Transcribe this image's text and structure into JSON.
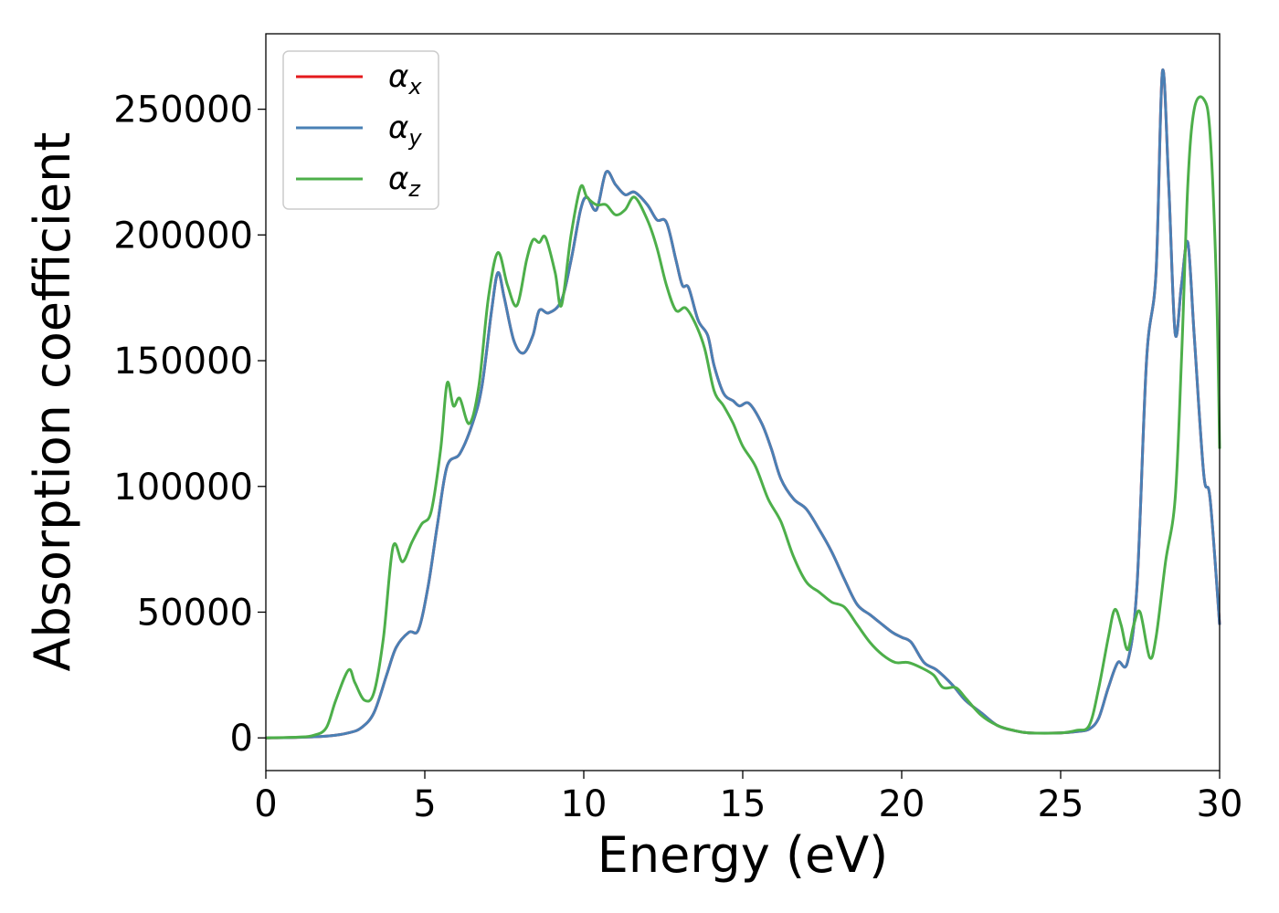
{
  "chart_data": {
    "type": "line",
    "title": "",
    "xlabel": "Energy (eV)",
    "ylabel": "Absorption coefficient",
    "xlim": [
      0,
      30
    ],
    "ylim": [
      -13000,
      280000
    ],
    "xticks": [
      0,
      5,
      10,
      15,
      20,
      25,
      30
    ],
    "yticks": [
      0,
      50000,
      100000,
      150000,
      200000,
      250000
    ],
    "xtick_labels": [
      "0",
      "5",
      "10",
      "15",
      "20",
      "25",
      "30"
    ],
    "ytick_labels": [
      "0",
      "50000",
      "100000",
      "150000",
      "200000",
      "250000"
    ],
    "grid": false,
    "legend_position": "top-left",
    "series": [
      {
        "name": "αx",
        "base": "α",
        "sub": "x",
        "color": "#e41a1c",
        "points": [
          [
            0,
            0
          ],
          [
            1,
            200
          ],
          [
            2,
            800
          ],
          [
            2.6,
            2000
          ],
          [
            3,
            4000
          ],
          [
            3.4,
            10000
          ],
          [
            3.8,
            25000
          ],
          [
            4.1,
            36000
          ],
          [
            4.5,
            42000
          ],
          [
            4.8,
            43000
          ],
          [
            5.1,
            60000
          ],
          [
            5.4,
            85000
          ],
          [
            5.7,
            108000
          ],
          [
            6.1,
            113000
          ],
          [
            6.5,
            125000
          ],
          [
            6.8,
            140000
          ],
          [
            7.1,
            170000
          ],
          [
            7.3,
            185000
          ],
          [
            7.5,
            175000
          ],
          [
            7.8,
            158000
          ],
          [
            8.1,
            153000
          ],
          [
            8.4,
            160000
          ],
          [
            8.6,
            170000
          ],
          [
            8.9,
            169000
          ],
          [
            9.3,
            174000
          ],
          [
            9.6,
            190000
          ],
          [
            9.9,
            210000
          ],
          [
            10.1,
            215000
          ],
          [
            10.4,
            210000
          ],
          [
            10.7,
            225000
          ],
          [
            11,
            220000
          ],
          [
            11.3,
            216000
          ],
          [
            11.6,
            217000
          ],
          [
            12,
            212000
          ],
          [
            12.3,
            206000
          ],
          [
            12.6,
            205000
          ],
          [
            12.9,
            190000
          ],
          [
            13.1,
            180000
          ],
          [
            13.3,
            179000
          ],
          [
            13.6,
            166000
          ],
          [
            13.9,
            160000
          ],
          [
            14.1,
            148000
          ],
          [
            14.4,
            137000
          ],
          [
            14.7,
            134000
          ],
          [
            14.9,
            132000
          ],
          [
            15.2,
            133000
          ],
          [
            15.6,
            125000
          ],
          [
            15.9,
            115000
          ],
          [
            16.2,
            103000
          ],
          [
            16.6,
            95000
          ],
          [
            17,
            91000
          ],
          [
            17.4,
            83000
          ],
          [
            17.8,
            74000
          ],
          [
            18.2,
            63000
          ],
          [
            18.6,
            53000
          ],
          [
            19,
            49000
          ],
          [
            19.3,
            46000
          ],
          [
            19.7,
            42000
          ],
          [
            20,
            40000
          ],
          [
            20.3,
            38000
          ],
          [
            20.7,
            30000
          ],
          [
            21.1,
            27000
          ],
          [
            21.6,
            21000
          ],
          [
            22,
            15000
          ],
          [
            22.5,
            10000
          ],
          [
            23,
            5000
          ],
          [
            23.5,
            3000
          ],
          [
            24,
            2000
          ],
          [
            25,
            2000
          ],
          [
            25.5,
            2500
          ],
          [
            25.9,
            3500
          ],
          [
            26.2,
            8000
          ],
          [
            26.5,
            20000
          ],
          [
            26.8,
            30000
          ],
          [
            27.1,
            30000
          ],
          [
            27.4,
            60000
          ],
          [
            27.7,
            150000
          ],
          [
            28,
            185000
          ],
          [
            28.2,
            265000
          ],
          [
            28.4,
            220000
          ],
          [
            28.6,
            161000
          ],
          [
            28.8,
            180000
          ],
          [
            29,
            197000
          ],
          [
            29.2,
            160000
          ],
          [
            29.5,
            105000
          ],
          [
            29.7,
            95000
          ],
          [
            30,
            45000
          ]
        ]
      },
      {
        "name": "αy",
        "base": "α",
        "sub": "y",
        "color": "#4a80b5",
        "points": [
          [
            0,
            0
          ],
          [
            1,
            200
          ],
          [
            2,
            800
          ],
          [
            2.6,
            2000
          ],
          [
            3,
            4000
          ],
          [
            3.4,
            10000
          ],
          [
            3.8,
            25000
          ],
          [
            4.1,
            36000
          ],
          [
            4.5,
            42000
          ],
          [
            4.8,
            43000
          ],
          [
            5.1,
            60000
          ],
          [
            5.4,
            85000
          ],
          [
            5.7,
            108000
          ],
          [
            6.1,
            113000
          ],
          [
            6.5,
            125000
          ],
          [
            6.8,
            140000
          ],
          [
            7.1,
            170000
          ],
          [
            7.3,
            185000
          ],
          [
            7.5,
            175000
          ],
          [
            7.8,
            158000
          ],
          [
            8.1,
            153000
          ],
          [
            8.4,
            160000
          ],
          [
            8.6,
            170000
          ],
          [
            8.9,
            169000
          ],
          [
            9.3,
            174000
          ],
          [
            9.6,
            190000
          ],
          [
            9.9,
            210000
          ],
          [
            10.1,
            215000
          ],
          [
            10.4,
            210000
          ],
          [
            10.7,
            225000
          ],
          [
            11,
            220000
          ],
          [
            11.3,
            216000
          ],
          [
            11.6,
            217000
          ],
          [
            12,
            212000
          ],
          [
            12.3,
            206000
          ],
          [
            12.6,
            205000
          ],
          [
            12.9,
            190000
          ],
          [
            13.1,
            180000
          ],
          [
            13.3,
            179000
          ],
          [
            13.6,
            166000
          ],
          [
            13.9,
            160000
          ],
          [
            14.1,
            148000
          ],
          [
            14.4,
            137000
          ],
          [
            14.7,
            134000
          ],
          [
            14.9,
            132000
          ],
          [
            15.2,
            133000
          ],
          [
            15.6,
            125000
          ],
          [
            15.9,
            115000
          ],
          [
            16.2,
            103000
          ],
          [
            16.6,
            95000
          ],
          [
            17,
            91000
          ],
          [
            17.4,
            83000
          ],
          [
            17.8,
            74000
          ],
          [
            18.2,
            63000
          ],
          [
            18.6,
            53000
          ],
          [
            19,
            49000
          ],
          [
            19.3,
            46000
          ],
          [
            19.7,
            42000
          ],
          [
            20,
            40000
          ],
          [
            20.3,
            38000
          ],
          [
            20.7,
            30000
          ],
          [
            21.1,
            27000
          ],
          [
            21.6,
            21000
          ],
          [
            22,
            15000
          ],
          [
            22.5,
            10000
          ],
          [
            23,
            5000
          ],
          [
            23.5,
            3000
          ],
          [
            24,
            2000
          ],
          [
            25,
            2000
          ],
          [
            25.5,
            2500
          ],
          [
            25.9,
            3500
          ],
          [
            26.2,
            8000
          ],
          [
            26.5,
            20000
          ],
          [
            26.8,
            30000
          ],
          [
            27.1,
            30000
          ],
          [
            27.4,
            60000
          ],
          [
            27.7,
            150000
          ],
          [
            28,
            185000
          ],
          [
            28.2,
            265000
          ],
          [
            28.4,
            220000
          ],
          [
            28.6,
            161000
          ],
          [
            28.8,
            180000
          ],
          [
            29,
            197000
          ],
          [
            29.2,
            160000
          ],
          [
            29.5,
            105000
          ],
          [
            29.7,
            95000
          ],
          [
            30,
            45000
          ]
        ]
      },
      {
        "name": "αz",
        "base": "α",
        "sub": "z",
        "color": "#4daf4a",
        "points": [
          [
            0,
            0
          ],
          [
            1,
            300
          ],
          [
            1.5,
            1000
          ],
          [
            1.9,
            4000
          ],
          [
            2.2,
            15000
          ],
          [
            2.6,
            27000
          ],
          [
            2.8,
            22000
          ],
          [
            3.1,
            15000
          ],
          [
            3.4,
            18000
          ],
          [
            3.7,
            40000
          ],
          [
            4,
            76000
          ],
          [
            4.3,
            70000
          ],
          [
            4.6,
            78000
          ],
          [
            4.9,
            85000
          ],
          [
            5.2,
            90000
          ],
          [
            5.5,
            115000
          ],
          [
            5.7,
            141000
          ],
          [
            5.9,
            132000
          ],
          [
            6.1,
            135000
          ],
          [
            6.4,
            125000
          ],
          [
            6.7,
            140000
          ],
          [
            7,
            175000
          ],
          [
            7.3,
            193000
          ],
          [
            7.6,
            180000
          ],
          [
            7.9,
            172000
          ],
          [
            8.2,
            190000
          ],
          [
            8.4,
            198000
          ],
          [
            8.6,
            197000
          ],
          [
            8.8,
            199000
          ],
          [
            9.1,
            185000
          ],
          [
            9.3,
            172000
          ],
          [
            9.6,
            200000
          ],
          [
            9.9,
            219000
          ],
          [
            10.1,
            215000
          ],
          [
            10.4,
            212000
          ],
          [
            10.7,
            212000
          ],
          [
            11,
            208000
          ],
          [
            11.3,
            210000
          ],
          [
            11.6,
            215000
          ],
          [
            12,
            206000
          ],
          [
            12.3,
            195000
          ],
          [
            12.6,
            180000
          ],
          [
            12.9,
            170000
          ],
          [
            13.2,
            171000
          ],
          [
            13.5,
            165000
          ],
          [
            13.8,
            155000
          ],
          [
            14.1,
            138000
          ],
          [
            14.4,
            132000
          ],
          [
            14.7,
            125000
          ],
          [
            15,
            116000
          ],
          [
            15.4,
            108000
          ],
          [
            15.8,
            95000
          ],
          [
            16.2,
            86000
          ],
          [
            16.6,
            72000
          ],
          [
            17,
            62000
          ],
          [
            17.4,
            58000
          ],
          [
            17.8,
            54000
          ],
          [
            18.2,
            52000
          ],
          [
            18.6,
            45000
          ],
          [
            19,
            38000
          ],
          [
            19.4,
            33000
          ],
          [
            19.8,
            30000
          ],
          [
            20.2,
            30000
          ],
          [
            20.6,
            28000
          ],
          [
            21,
            25000
          ],
          [
            21.3,
            20000
          ],
          [
            21.7,
            20000
          ],
          [
            22,
            16000
          ],
          [
            22.5,
            9000
          ],
          [
            23,
            5000
          ],
          [
            23.5,
            3000
          ],
          [
            24,
            2000
          ],
          [
            25,
            2000
          ],
          [
            25.5,
            3000
          ],
          [
            25.9,
            5000
          ],
          [
            26.2,
            20000
          ],
          [
            26.5,
            40000
          ],
          [
            26.7,
            51000
          ],
          [
            26.9,
            45000
          ],
          [
            27.1,
            35000
          ],
          [
            27.3,
            45000
          ],
          [
            27.5,
            50000
          ],
          [
            27.8,
            32000
          ],
          [
            28,
            40000
          ],
          [
            28.3,
            70000
          ],
          [
            28.6,
            95000
          ],
          [
            28.8,
            150000
          ],
          [
            29,
            220000
          ],
          [
            29.2,
            250000
          ],
          [
            29.5,
            254000
          ],
          [
            29.7,
            240000
          ],
          [
            29.9,
            180000
          ],
          [
            30,
            115000
          ]
        ]
      }
    ]
  }
}
